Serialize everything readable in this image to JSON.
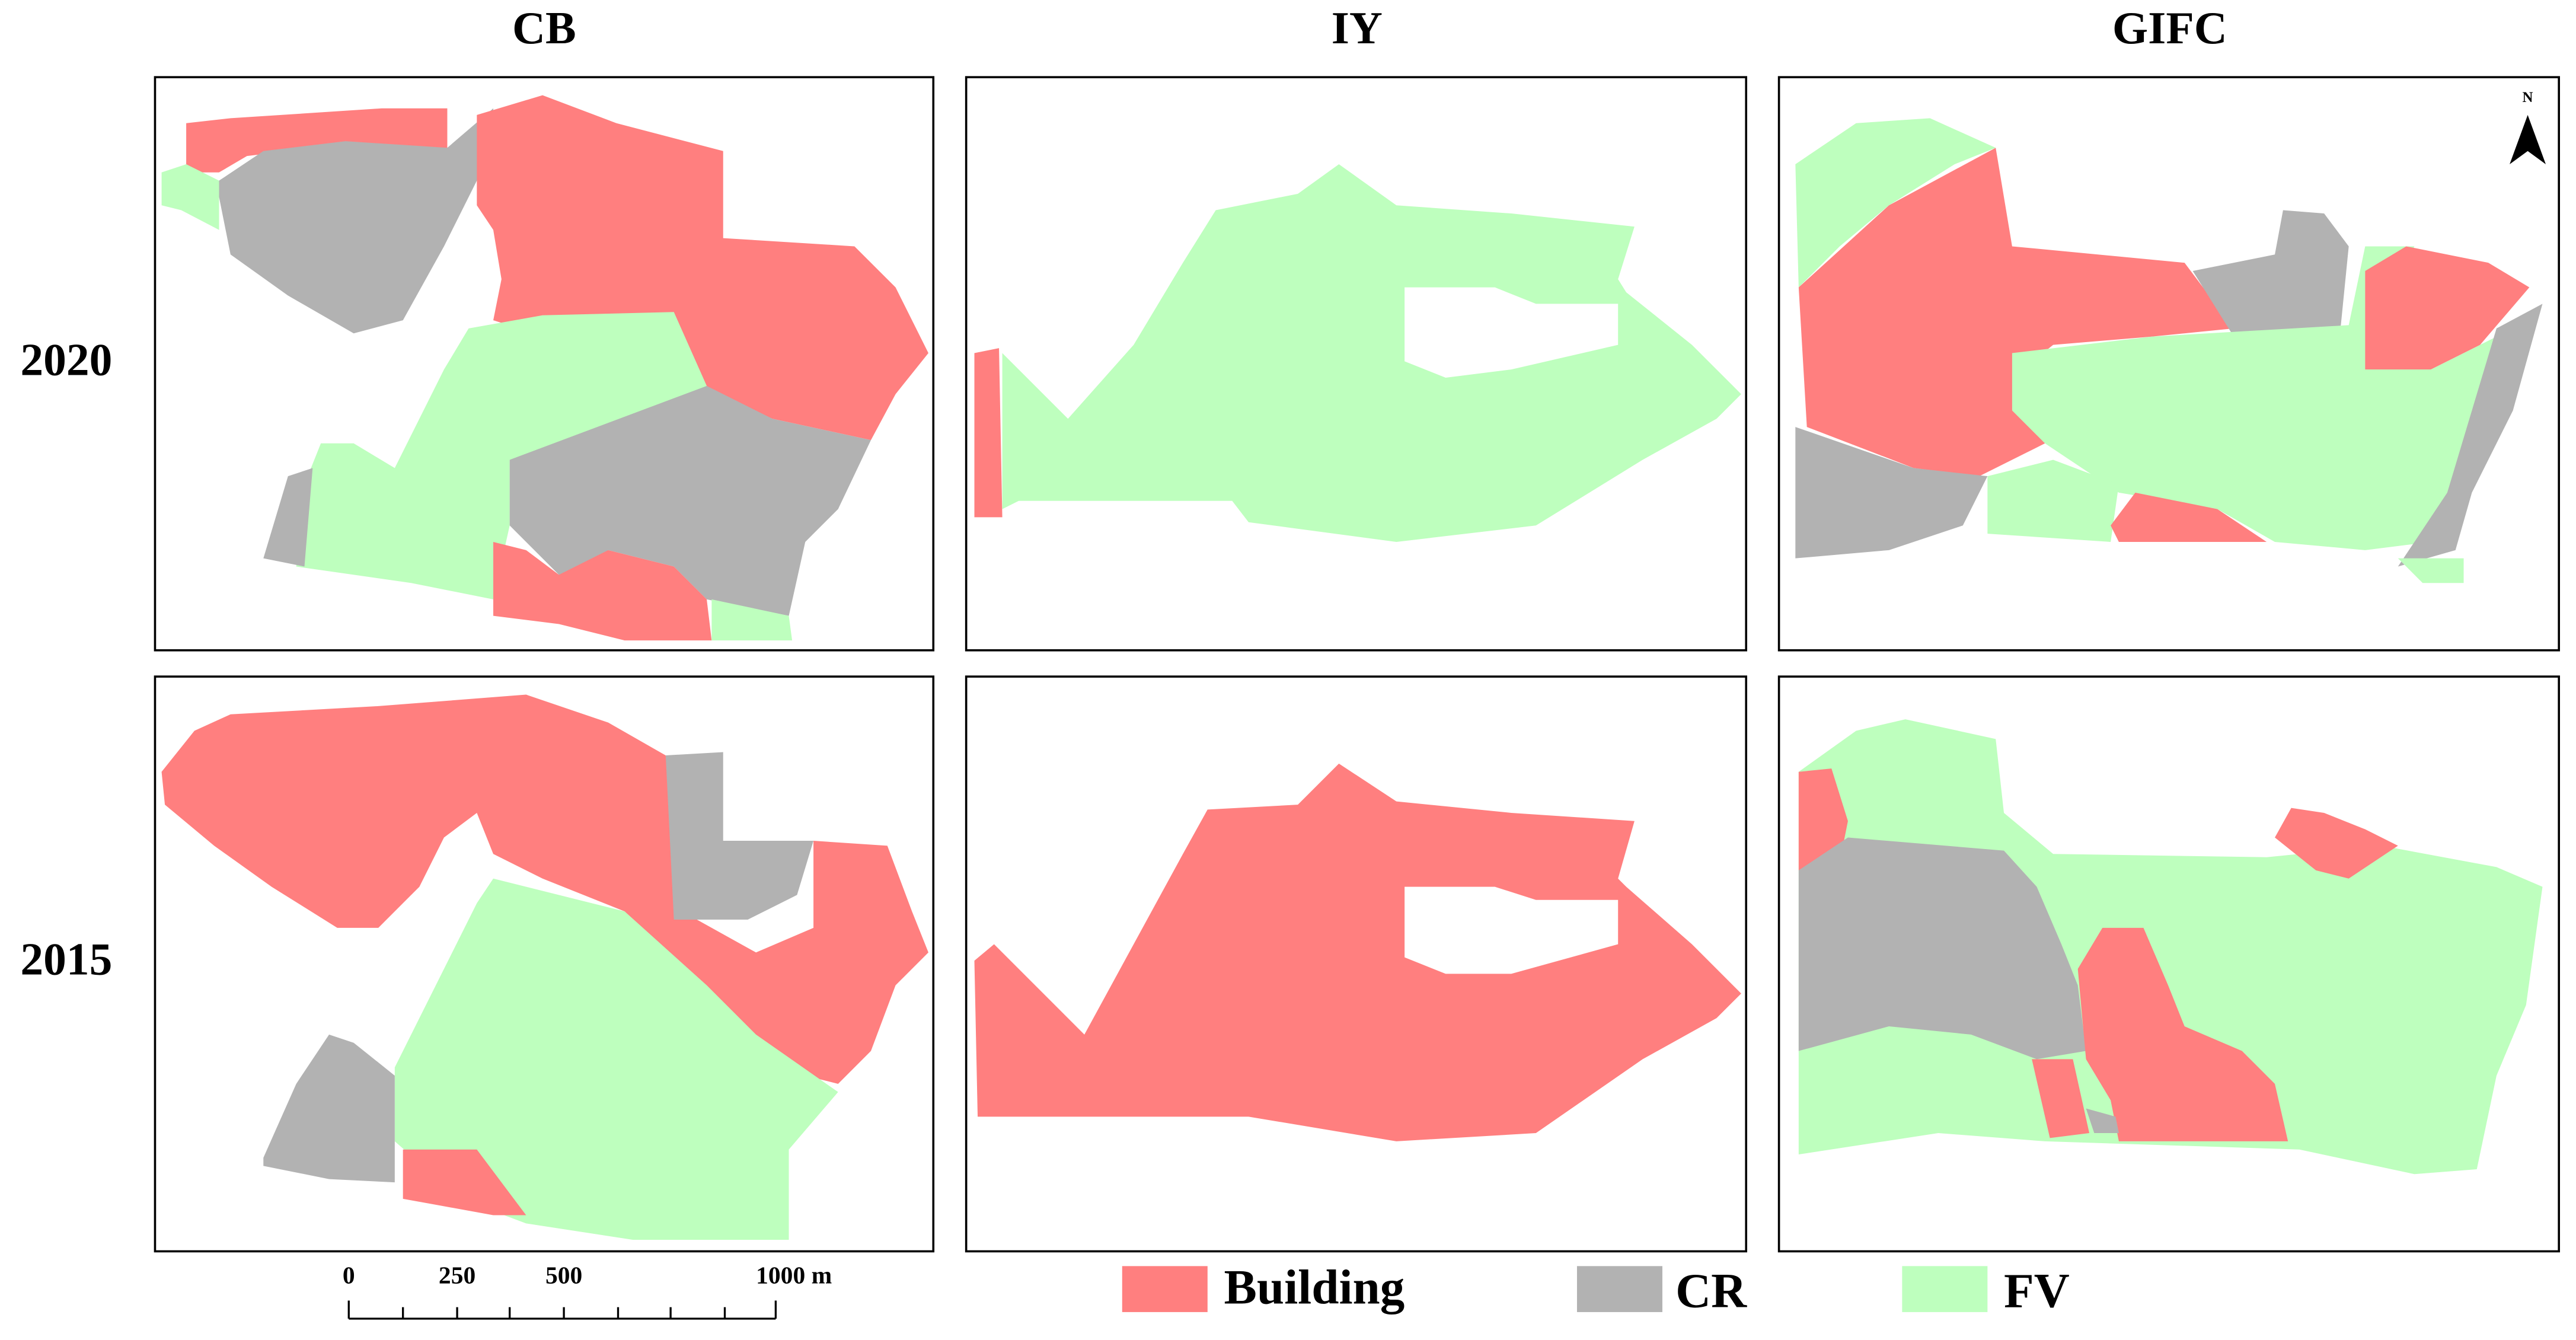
{
  "columns": [
    "CB",
    "IY",
    "GIFC"
  ],
  "rows": [
    "2020",
    "2015"
  ],
  "legend": [
    "Building",
    "CR",
    "FV"
  ],
  "scale_bar": {
    "labels": [
      "0",
      "250",
      "500",
      "1000 m"
    ]
  },
  "north_arrow": "N"
}
